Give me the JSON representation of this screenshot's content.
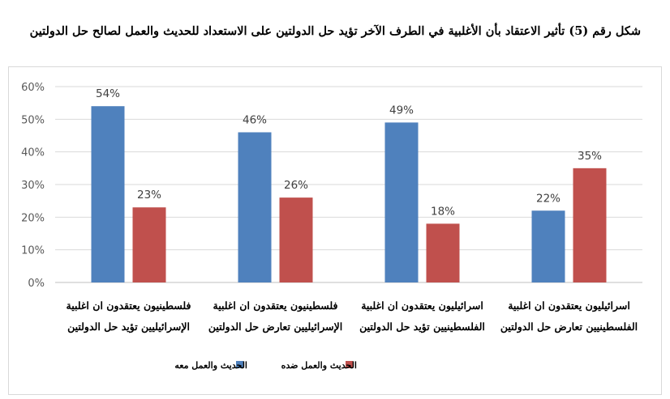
{
  "caption": "شكل رقم (5) تأثير الاعتقاد بأن الأغلبية في الطرف الآخر تؤيد حل الدولتين على الاستعداد للحديث والعمل لصالح حل الدولتين",
  "colors": {
    "series1": "#4f81bd",
    "series2": "#c0504d",
    "grid": "#d9d9d9",
    "axis": "#bfbfbf"
  },
  "chart_data": {
    "type": "bar",
    "title": "شكل رقم (5) تأثير الاعتقاد بأن الأغلبية في الطرف الآخر تؤيد حل الدولتين على الاستعداد للحديث والعمل لصالح حل الدولتين",
    "ylim": [
      0,
      60
    ],
    "yticks": [
      "0%",
      "10%",
      "20%",
      "30%",
      "40%",
      "50%",
      "60%"
    ],
    "ytick_values": [
      0,
      10,
      20,
      30,
      40,
      50,
      60
    ],
    "grid": true,
    "legend_position": "bottom",
    "categories": [
      [
        "فلسطينيون يعتقدون ان اغلبية",
        "الإسرائيليين تؤيد حل الدولتين"
      ],
      [
        "فلسطينيون يعتقدون ان اغلبية",
        "الإسرائيليين تعارض حل الدولتين"
      ],
      [
        "اسرائيليون يعتقدون ان اغلبية",
        "الفلسطينيين تؤيد حل الدولتين"
      ],
      [
        "اسرائيليون يعتقدون ان اغلبية",
        "الفلسطينيين تعارض حل الدولتين"
      ]
    ],
    "series": [
      {
        "name": "الحديث والعمل معه",
        "values": [
          54,
          46,
          49,
          22
        ],
        "labels": [
          "54%",
          "46%",
          "49%",
          "22%"
        ]
      },
      {
        "name": "الحديث والعمل ضده",
        "values": [
          23,
          26,
          18,
          35
        ],
        "labels": [
          "23%",
          "26%",
          "18%",
          "35%"
        ]
      }
    ]
  }
}
